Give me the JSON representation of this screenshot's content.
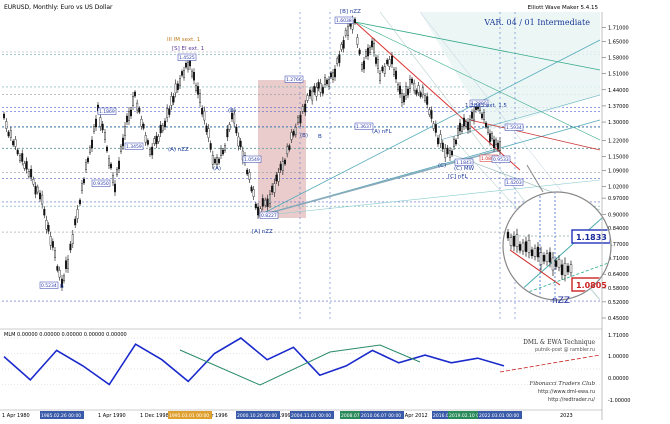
{
  "window": {
    "title": "EURUSD, Monthly:  Euro vs US Dollar",
    "branding": "Elliott Wave Maker 5.4.15",
    "version_label": "VAR. 04 / 01 Intermediate"
  },
  "chart_data": [
    {
      "type": "candlestick",
      "title": "EURUSD, Monthly:  Euro vs US Dollar",
      "x": [
        "1 Apr 1980",
        "1 Oct 1985",
        "1 Apr 1990",
        "1 Dec 1998",
        "1 Apr 1996",
        "1 Aug 1999",
        "1 Apr 2012",
        "1 Apr 2018",
        "2023"
      ],
      "y_ticks": [
        1.71,
        1.65,
        1.58,
        1.51,
        1.44,
        1.37,
        1.3,
        1.22,
        1.15,
        1.09,
        1.02,
        0.97,
        0.9,
        0.84,
        0.77,
        0.71,
        0.64,
        0.58,
        0.52,
        0.45
      ],
      "ylim": [
        0.45,
        1.76
      ],
      "key_prices": [
        {
          "label": "0.5234",
          "value": 0.5234
        },
        {
          "label": "0.9350",
          "value": 0.935
        },
        {
          "label": "1.1869",
          "value": 1.1869
        },
        {
          "label": "1.3459",
          "value": 1.3459
        },
        {
          "label": "1.4525",
          "value": 1.4525
        },
        {
          "label": "0.8227",
          "value": 0.8227
        },
        {
          "label": "1.0549",
          "value": 1.0549
        },
        {
          "label": "1.2766",
          "value": 1.2766
        },
        {
          "label": "1.6038",
          "value": 1.6038
        },
        {
          "label": "1.3637",
          "value": 1.3637
        },
        {
          "label": "1.1843",
          "value": 1.1843
        },
        {
          "label": "1.0808",
          "value": 1.0808
        },
        {
          "label": "0.9533",
          "value": 0.9533
        },
        {
          "label": "1.5934",
          "value": 1.5934
        },
        {
          "label": "1.4203",
          "value": 1.4203
        },
        {
          "label": "1.2800",
          "value": 1.28
        }
      ],
      "wave_labels": [
        {
          "label": "[B] nZZ",
          "value": 1.6038
        },
        {
          "label": "[A] nZZ",
          "value": 0.8227
        },
        {
          "label": "(A)",
          "value": 1.0549
        },
        {
          "label": "(B)",
          "value": 1.2766
        },
        {
          "label": "(A) nZZ",
          "value": 1.0898
        },
        {
          "label": "(B)",
          "value": 1.1869
        },
        {
          "label": "(C)",
          "value": 1.0
        },
        {
          "label": "(C) MW",
          "value": 1.0
        },
        {
          "label": "[C] nFL",
          "value": 0.99
        },
        {
          "label": "[S] EI ext. 1",
          "value": 1.45
        },
        {
          "label": "III IM sext. 1",
          "value": 1.45
        },
        {
          "label": "1.1843 ext. 1.5",
          "value": 1.1843
        },
        {
          "label": "(A) nFL",
          "value": 1.31
        },
        {
          "label": "B",
          "value": 1.36
        },
        {
          "label": "B",
          "value": 0.5
        }
      ],
      "current_price": 1.0808
    },
    {
      "type": "line",
      "title": "MLM  0.00000  0.00000  0.00000  0.00000  0.00000",
      "series": [
        {
          "values": [
            0.4,
            -0.35,
            0.6,
            0.1,
            -0.5,
            0.8,
            0.3,
            -0.4,
            0.5,
            1.0,
            0.3,
            0.7,
            -0.2,
            0.1,
            0.6,
            0.2,
            0.45,
            0.2,
            0.35,
            0.1
          ]
        }
      ]
    }
  ],
  "inset": {
    "price_top": "1.1833",
    "price_bottom": "1.0805",
    "wave_label": "nZZ"
  },
  "overlay_text": {
    "dml": "DML & EWA Technique",
    "email": "putnik-post @ rambler.ru",
    "club": "Fibonacci  Traders  Club",
    "site1": "http://www.dml-ewa.ru",
    "site2": "http://redtrader.ru/"
  },
  "x_axis": {
    "labels": [
      "1 Apr 1980",
      "1 Oct 1985",
      "1 Apr 1990",
      "1 Dec 1998",
      "1 Apr 1996",
      "1 Aug 1999",
      "1 Apr 2012",
      "1 Apr 2018",
      "2023"
    ],
    "highlighted": [
      "1985.02.26 00:00",
      "1995.03.01 00:00",
      "2000.10.26 00:00",
      "2004.11.01 00:00",
      "2008.07.01",
      "2010.06.07 00:00",
      "2016.05.31",
      "2019.02.10 00:00",
      "2022.03.01 00:00"
    ]
  },
  "indicator_y": [
    "1.71000",
    "1.00000",
    "0.00000",
    "-1.00000"
  ]
}
